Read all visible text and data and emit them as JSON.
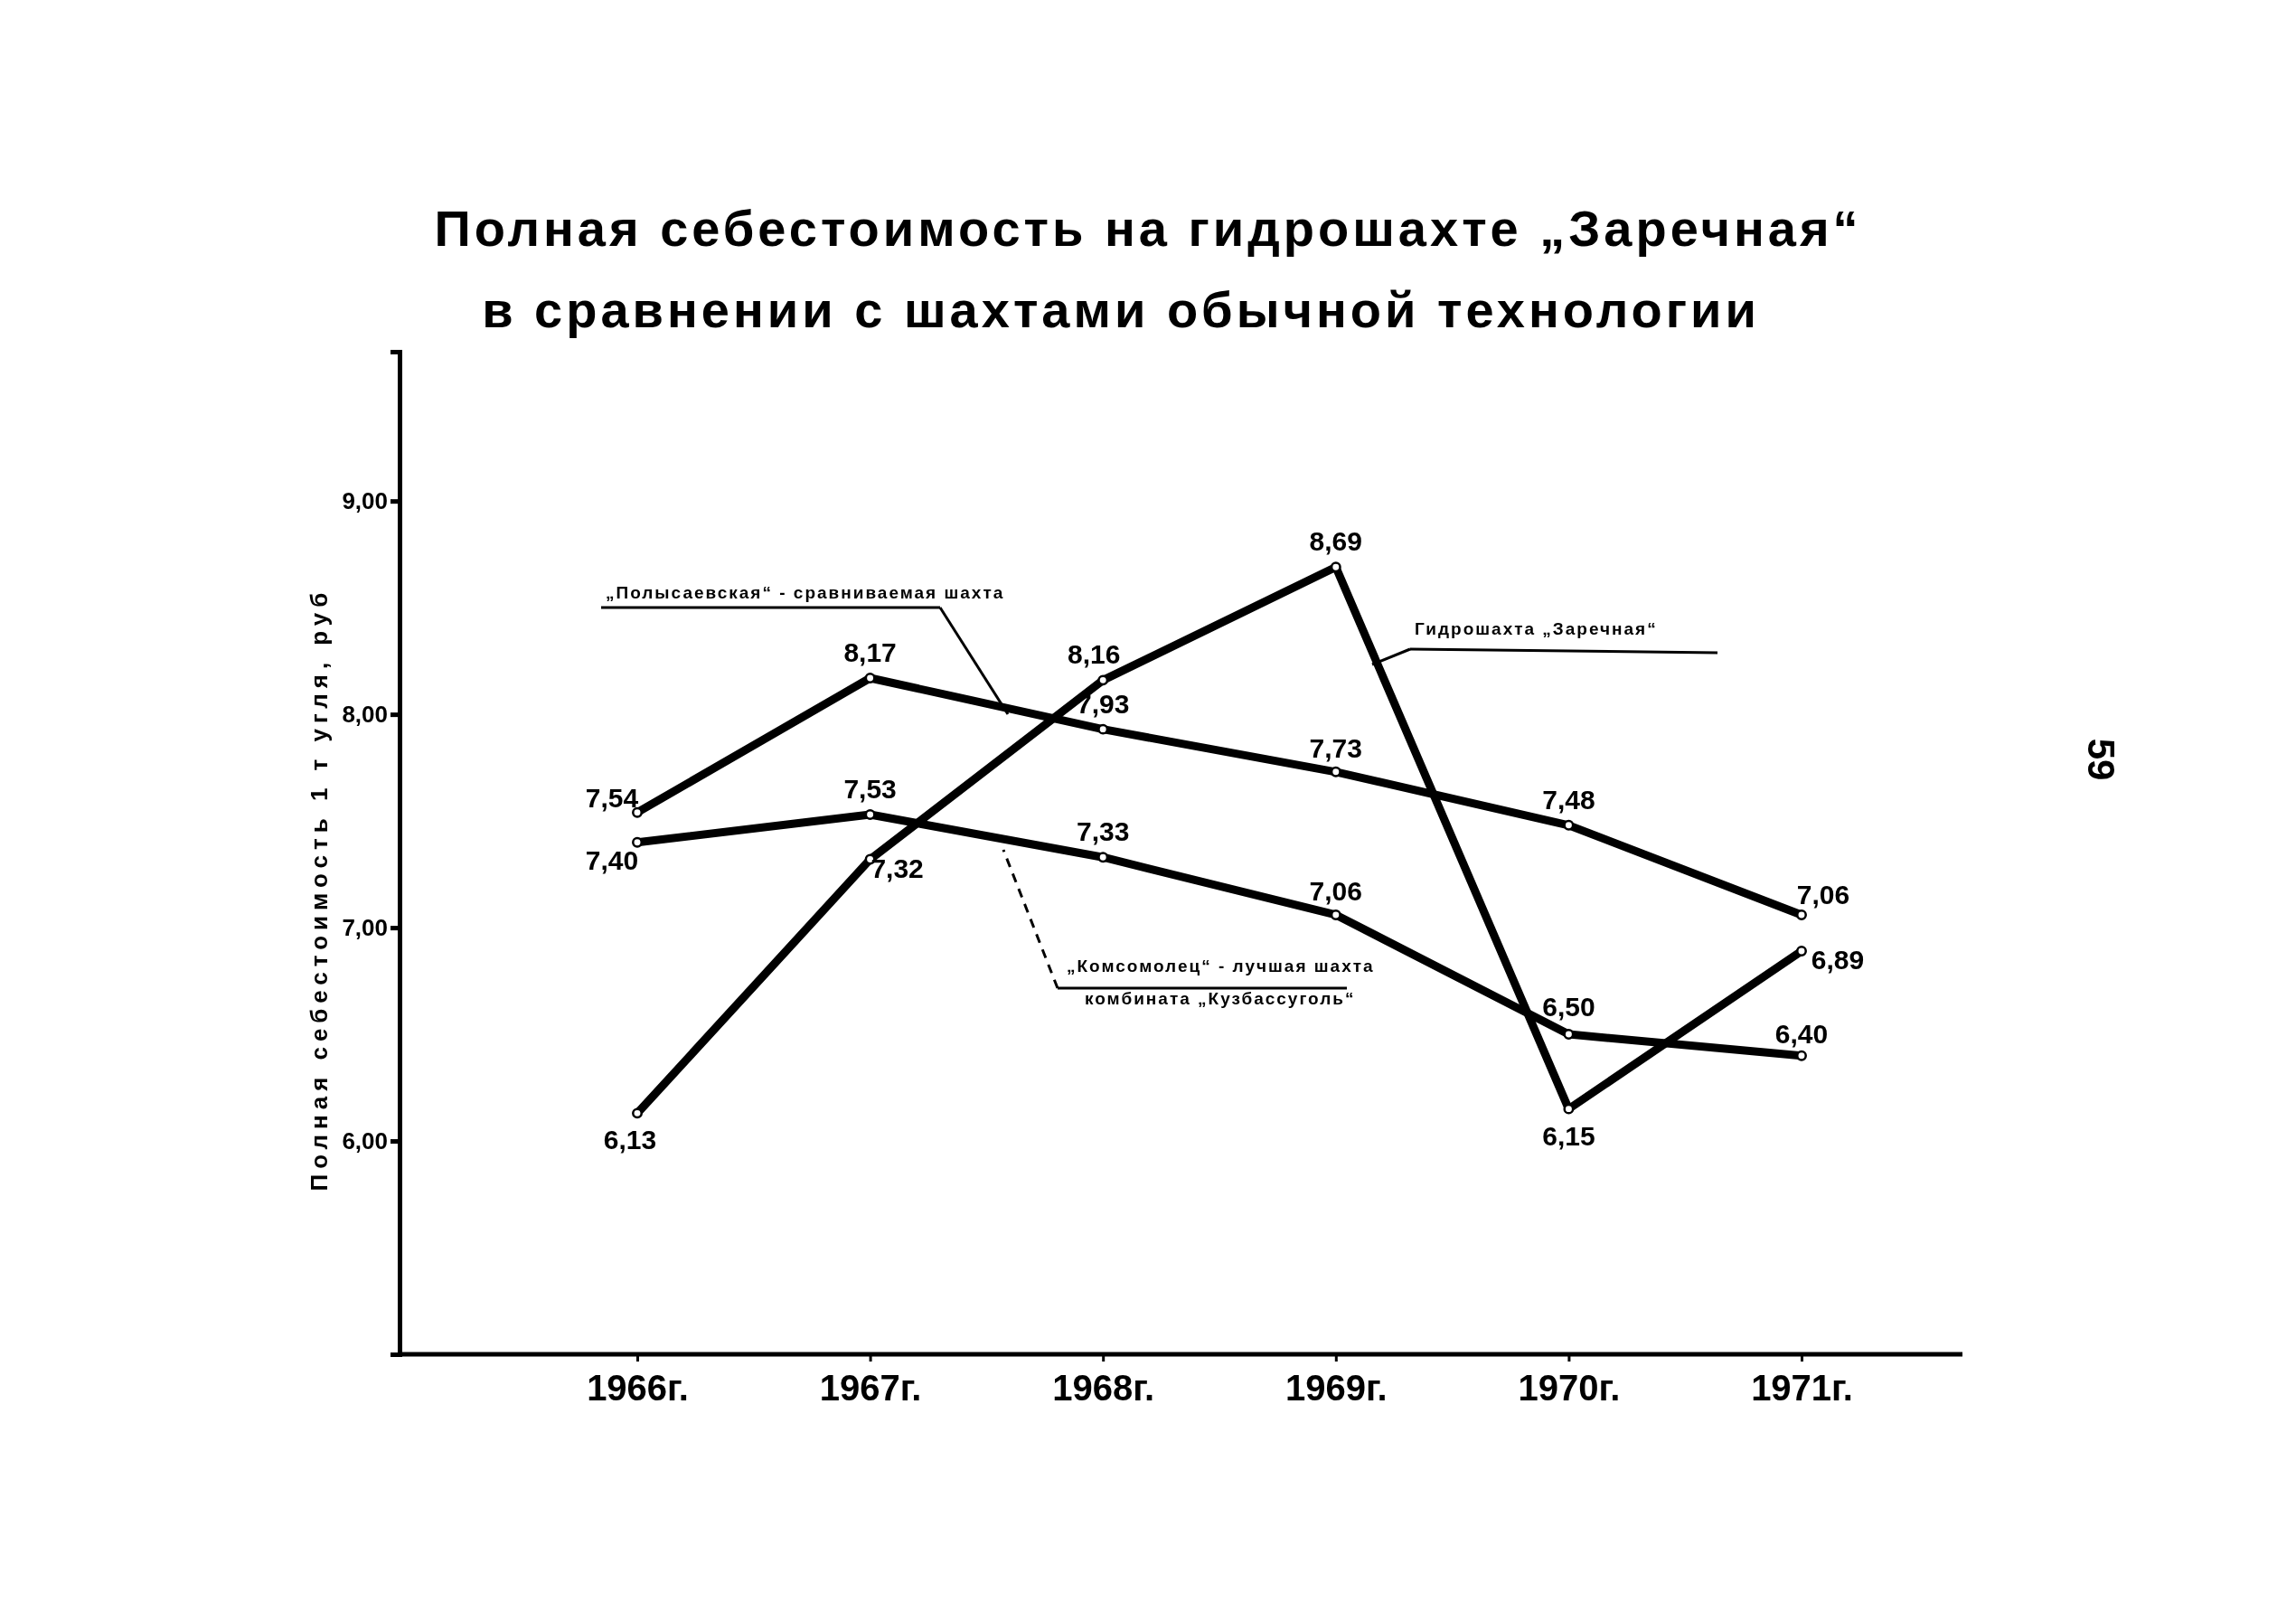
{
  "chart_data": {
    "type": "line",
    "title": "Полная себестоимость на гидрошахте „Заречная“",
    "subtitle": "в сравнении с шахтами обычной технологии",
    "ylabel": "Полная себестоимость 1 т угля, руб",
    "categories": [
      "1966г.",
      "1967г.",
      "1968г.",
      "1969г.",
      "1970г.",
      "1971г."
    ],
    "series": [
      {
        "name": "Гидрошахта „Заречная“",
        "color": "#000000",
        "values": [
          6.13,
          7.32,
          8.16,
          8.69,
          6.15,
          6.89
        ],
        "value_labels": [
          "6,13",
          "7,32",
          "8,16",
          "8,69",
          "6,15",
          "6,89"
        ]
      },
      {
        "name": "„Полысаевская“ - сравниваемая шахта",
        "color": "#000000",
        "values": [
          7.54,
          8.17,
          7.93,
          7.73,
          7.48,
          7.06
        ],
        "value_labels": [
          "7,54",
          "8,17",
          "7,93",
          "7,73",
          "7,48",
          "7,06"
        ]
      },
      {
        "name": "„Комсомолец“ - лучшая шахта комбината „Кузбассуголь“",
        "color": "#000000",
        "values": [
          7.4,
          7.53,
          7.33,
          7.06,
          6.5,
          6.4
        ],
        "value_labels": [
          "7,40",
          "7,53",
          "7,33",
          "7,06",
          "6,50",
          "6,40"
        ]
      }
    ],
    "ylim": [
      5.0,
      9.7
    ],
    "yticks": [
      {
        "value": 6,
        "label": "6,00"
      },
      {
        "value": 7,
        "label": "7,00"
      },
      {
        "value": 8,
        "label": "8,00"
      },
      {
        "value": 9,
        "label": "9,00"
      }
    ],
    "grid": false,
    "marker": "circle",
    "line_style": "solid",
    "annotations": [
      "59"
    ]
  }
}
